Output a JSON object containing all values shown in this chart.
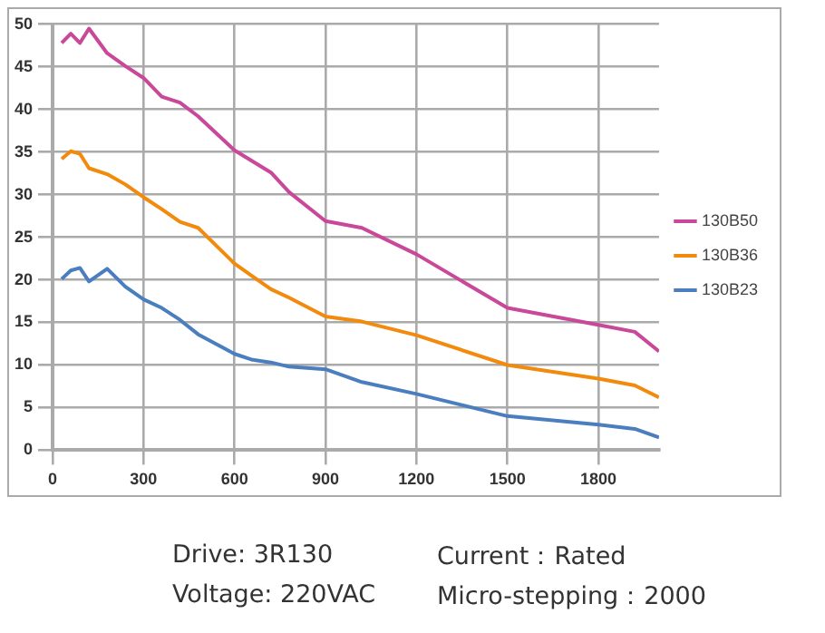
{
  "chart_data": {
    "type": "line",
    "x": [
      30,
      60,
      90,
      120,
      180,
      240,
      300,
      360,
      420,
      480,
      600,
      660,
      720,
      780,
      900,
      1020,
      1200,
      1500,
      1800,
      1920,
      2000
    ],
    "series": [
      {
        "name": "130B50",
        "color": "#c9489a",
        "values": [
          47.8,
          48.9,
          47.8,
          49.5,
          46.6,
          45.1,
          43.7,
          41.5,
          40.8,
          39.2,
          35.2,
          33.9,
          32.6,
          30.3,
          26.9,
          26.1,
          23.0,
          16.7,
          14.7,
          13.9,
          11.6
        ]
      },
      {
        "name": "130B36",
        "color": "#f28a0e",
        "values": [
          34.2,
          35.1,
          34.8,
          33.1,
          32.4,
          31.2,
          29.7,
          28.3,
          26.8,
          26.1,
          21.9,
          20.4,
          18.9,
          17.9,
          15.7,
          15.1,
          13.5,
          10.0,
          8.4,
          7.6,
          6.2
        ]
      },
      {
        "name": "130B23",
        "color": "#4a7ebf",
        "values": [
          20.1,
          21.1,
          21.4,
          19.8,
          21.3,
          19.2,
          17.7,
          16.7,
          15.3,
          13.6,
          11.3,
          10.6,
          10.3,
          9.8,
          9.5,
          8.0,
          6.6,
          4.0,
          3.0,
          2.5,
          1.5
        ]
      }
    ],
    "xlim": [
      0,
      2000
    ],
    "xticks": [
      0,
      300,
      600,
      900,
      1200,
      1500,
      1800
    ],
    "ylim": [
      0,
      50
    ],
    "yticks": [
      0,
      5,
      10,
      15,
      20,
      25,
      30,
      35,
      40,
      45,
      50
    ],
    "grid": true,
    "legend": "right",
    "marker": "none",
    "line_style": "solid",
    "annotations": [
      "Drive:  3R130",
      "Current：Rated",
      "Voltage:  220VAC",
      "Micro-stepping：2000"
    ]
  }
}
